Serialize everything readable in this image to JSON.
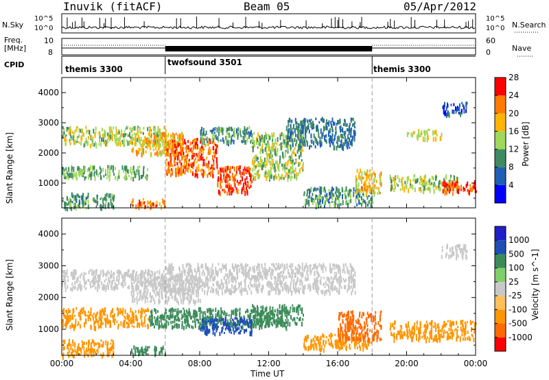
{
  "header": {
    "station": "Inuvik (fitACF)",
    "beam": "Beam 05",
    "date": "05/Apr/2012"
  },
  "top_panels": {
    "nsky_label": "N.Sky",
    "nsky_ticks": [
      "10^5",
      "10^0"
    ],
    "nsearch_label": "N.Search",
    "nsearch_ticks": [
      "10^5",
      "10^0"
    ],
    "freq_label": "Freq.",
    "freq_unit": "[MHz]",
    "freq_ticks": [
      "10",
      "8"
    ],
    "nave_label": "Nave",
    "nave_ticks": [
      "60",
      "0"
    ],
    "cpid_label": "CPID",
    "cpid_segments": [
      {
        "name": "themis 3300",
        "start_h": 0,
        "end_h": 6
      },
      {
        "name": "twofsound 3501",
        "start_h": 6,
        "end_h": 18
      },
      {
        "name": "themis 3300",
        "start_h": 18,
        "end_h": 24
      }
    ]
  },
  "chart_data": [
    {
      "type": "heatmap",
      "title": "Power",
      "xlabel": "",
      "ylabel": "Slant Range [km]",
      "xlim": [
        0,
        24
      ],
      "ylim": [
        180,
        4500
      ],
      "yticks": [
        "1000",
        "2000",
        "3000",
        "4000"
      ],
      "colorbar_label": "Power [dB]",
      "colorbar_ticks": [
        "4",
        "8",
        "12",
        "16",
        "20",
        "24",
        "28"
      ],
      "colorbar_colors": [
        "#0000ff",
        "#1f5fb4",
        "#3e8a62",
        "#9fd85a",
        "#ffb400",
        "#ff7a00",
        "#ff0000"
      ],
      "regions": [
        {
          "x": [
            0,
            6
          ],
          "y": [
            2300,
            2900
          ],
          "v": 18
        },
        {
          "x": [
            0,
            5
          ],
          "y": [
            1200,
            1600
          ],
          "v": 16
        },
        {
          "x": [
            4,
            7
          ],
          "y": [
            2000,
            2700
          ],
          "v": 22
        },
        {
          "x": [
            6,
            9
          ],
          "y": [
            1300,
            2500
          ],
          "v": 27
        },
        {
          "x": [
            9,
            11
          ],
          "y": [
            700,
            1600
          ],
          "v": 28
        },
        {
          "x": [
            8,
            11
          ],
          "y": [
            2400,
            2900
          ],
          "v": 14
        },
        {
          "x": [
            11,
            14
          ],
          "y": [
            1200,
            2700
          ],
          "v": 18
        },
        {
          "x": [
            13,
            17
          ],
          "y": [
            2200,
            3200
          ],
          "v": 12
        },
        {
          "x": [
            14,
            18
          ],
          "y": [
            300,
            900
          ],
          "v": 14
        },
        {
          "x": [
            17,
            18.5
          ],
          "y": [
            700,
            1500
          ],
          "v": 22
        },
        {
          "x": [
            19,
            23
          ],
          "y": [
            800,
            1300
          ],
          "v": 18
        },
        {
          "x": [
            22,
            24
          ],
          "y": [
            700,
            1100
          ],
          "v": 28
        },
        {
          "x": [
            0,
            3
          ],
          "y": [
            200,
            700
          ],
          "v": 15
        },
        {
          "x": [
            4,
            6
          ],
          "y": [
            250,
            500
          ],
          "v": 26
        },
        {
          "x": [
            20,
            22
          ],
          "y": [
            2500,
            2800
          ],
          "v": 20
        },
        {
          "x": [
            22,
            23.5
          ],
          "y": [
            3300,
            3700
          ],
          "v": 10
        }
      ]
    },
    {
      "type": "heatmap",
      "title": "Velocity",
      "xlabel": "Time UT",
      "ylabel": "Slant Range [km]",
      "xlim": [
        0,
        24
      ],
      "ylim": [
        180,
        4500
      ],
      "xticks": [
        "00:00",
        "04:00",
        "08:00",
        "12:00",
        "16:00",
        "20:00",
        "00:00"
      ],
      "yticks": [
        "1000",
        "2000",
        "3000",
        "4000"
      ],
      "colorbar_label": "Velocity [m s^-1]",
      "colorbar_ticks": [
        "-1000",
        "-500",
        "-100",
        "-25",
        "25",
        "100",
        "500",
        "1000"
      ],
      "colorbar_colors": [
        "#ff0000",
        "#ff6a00",
        "#ff9500",
        "#ffbf5a",
        "#c8c8c8",
        "#7fd06a",
        "#3c8c5a",
        "#1e4fb4",
        "#2020c8"
      ],
      "regions": [
        {
          "x": [
            0,
            6
          ],
          "y": [
            2300,
            2900
          ],
          "v": 0
        },
        {
          "x": [
            0,
            5
          ],
          "y": [
            1100,
            1700
          ],
          "v": -300
        },
        {
          "x": [
            4,
            8
          ],
          "y": [
            1900,
            2700
          ],
          "v": 0
        },
        {
          "x": [
            5,
            13
          ],
          "y": [
            1100,
            1700
          ],
          "v": 300
        },
        {
          "x": [
            8,
            11
          ],
          "y": [
            900,
            1400
          ],
          "v": 900
        },
        {
          "x": [
            11,
            14
          ],
          "y": [
            1200,
            1800
          ],
          "v": 300
        },
        {
          "x": [
            6,
            17
          ],
          "y": [
            2200,
            3100
          ],
          "v": 0
        },
        {
          "x": [
            14,
            18
          ],
          "y": [
            400,
            900
          ],
          "v": -300
        },
        {
          "x": [
            16,
            18.5
          ],
          "y": [
            700,
            1600
          ],
          "v": -600
        },
        {
          "x": [
            19,
            24
          ],
          "y": [
            700,
            1300
          ],
          "v": -300
        },
        {
          "x": [
            0,
            3
          ],
          "y": [
            200,
            700
          ],
          "v": -300
        },
        {
          "x": [
            4,
            6
          ],
          "y": [
            250,
            500
          ],
          "v": 150
        },
        {
          "x": [
            22,
            23.5
          ],
          "y": [
            3300,
            3700
          ],
          "v": 0
        }
      ]
    }
  ]
}
